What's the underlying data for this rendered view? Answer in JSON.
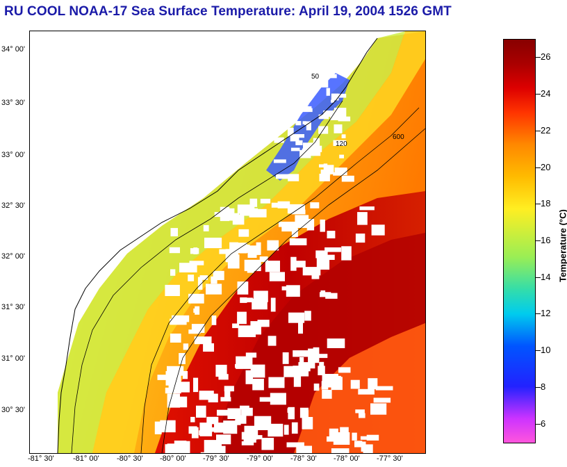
{
  "title": "RU COOL  NOAA-17  Sea Surface Temperature:  April 19, 2004 1526 GMT",
  "latitude_labels": [
    "34° 00'",
    "33° 30'",
    "33° 00'",
    "32° 30'",
    "32° 00'",
    "31° 30'",
    "31° 00'",
    "30° 30'"
  ],
  "longitude_labels": [
    "-81° 30'",
    "-81° 00'",
    "-80° 30'",
    "-80° 00'",
    "-79° 30'",
    "-79° 00'",
    "-78° 30'",
    "-78° 00'",
    "-77° 30'"
  ],
  "contour_labels": [
    "50",
    "120",
    "600"
  ],
  "colorbar": {
    "title": "Temperature (°C)",
    "ticks": [
      "26",
      "24",
      "22",
      "20",
      "18",
      "16",
      "14",
      "12",
      "10",
      "8",
      "6"
    ],
    "range": [
      5,
      27
    ]
  },
  "colors": {
    "title": "#1a1aa8",
    "coast": "#000000",
    "gulf_stream": "#cc0000",
    "shelf_warm": "#ff7a00",
    "shelf_mid": "#ffd21f",
    "nearshore": "#a8e84a",
    "cold_pool": "#3a5cff",
    "cloud": "#ffffff"
  }
}
